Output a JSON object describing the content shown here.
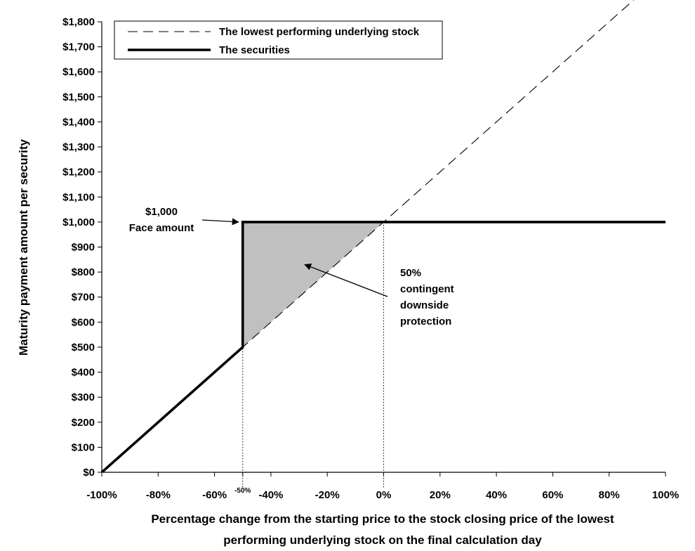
{
  "chart_data": {
    "type": "line",
    "xlabel_lines": [
      "Percentage change from the starting price to the stock closing price of the lowest",
      "performing underlying stock on the final calculation day"
    ],
    "ylabel": "Maturity payment amount per security",
    "xlim": [
      -100,
      100
    ],
    "ylim": [
      0,
      1800
    ],
    "x_ticks": [
      -100,
      -80,
      -60,
      -40,
      -20,
      0,
      20,
      40,
      60,
      80,
      100
    ],
    "x_tick_labels": [
      "-100%",
      "-80%",
      "-60%",
      "-40%",
      "-20%",
      "0%",
      "20%",
      "40%",
      "60%",
      "80%",
      "100%"
    ],
    "x_extra_tick": {
      "x": -50,
      "label": "-50%"
    },
    "y_ticks": [
      0,
      100,
      200,
      300,
      400,
      500,
      600,
      700,
      800,
      900,
      1000,
      1100,
      1200,
      1300,
      1400,
      1500,
      1600,
      1700,
      1800
    ],
    "y_tick_labels": [
      "$0",
      "$100",
      "$200",
      "$300",
      "$400",
      "$500",
      "$600",
      "$700",
      "$800",
      "$900",
      "$1,000",
      "$1,100",
      "$1,200",
      "$1,300",
      "$1,400",
      "$1,500",
      "$1,600",
      "$1,700",
      "$1,800"
    ],
    "series": [
      {
        "name": "The lowest performing underlying stock",
        "style": "dashed",
        "x": [
          -100,
          100
        ],
        "y": [
          0,
          2000
        ]
      },
      {
        "name": "The securities",
        "style": "solid-thick",
        "x": [
          -100,
          -50,
          -50,
          100
        ],
        "y": [
          0,
          500,
          1000,
          1000
        ]
      }
    ],
    "shaded_region": {
      "color": "#c0c0c0",
      "x": [
        -50,
        0,
        -50
      ],
      "y": [
        1000,
        1000,
        500
      ]
    },
    "reference_lines": [
      {
        "x": -50,
        "y_top": 1000,
        "style": "dotted"
      },
      {
        "x": 0,
        "y_top": 1000,
        "style": "dotted"
      }
    ],
    "annotations": [
      {
        "id": "face",
        "lines": [
          "$1,000",
          "Face amount"
        ],
        "arrow_to": {
          "x": -50,
          "y": 1000
        }
      },
      {
        "id": "protection",
        "lines": [
          "50%",
          "contingent",
          "downside",
          "protection"
        ],
        "arrow_to": {
          "x": -28,
          "y": 830
        }
      }
    ],
    "legend": {
      "position": "top-left",
      "entries": [
        "The lowest performing underlying stock",
        "The securities"
      ]
    },
    "grid": false
  }
}
